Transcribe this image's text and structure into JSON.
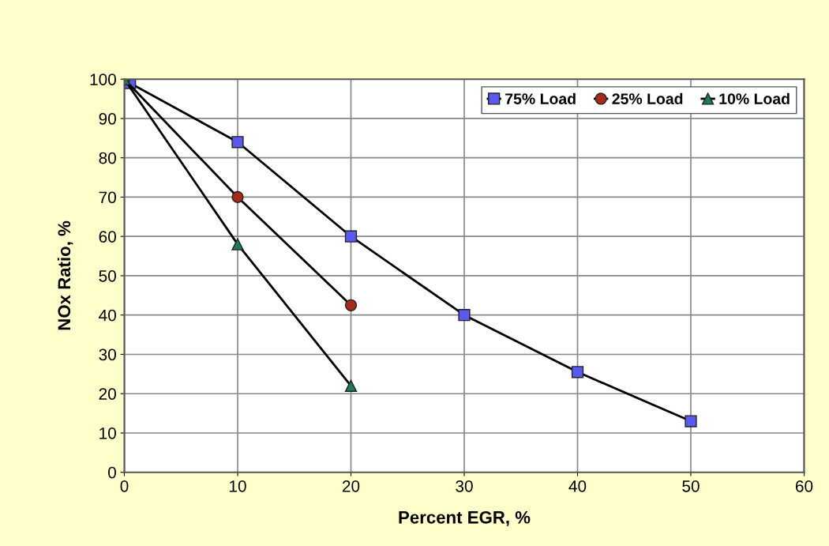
{
  "chart_data": {
    "type": "line",
    "xlabel": "Percent EGR, %",
    "ylabel": "NOx Ratio, %",
    "xlim": [
      0,
      60
    ],
    "xticks": [
      0,
      10,
      20,
      30,
      40,
      50,
      60
    ],
    "ylim": [
      0,
      100
    ],
    "yticks": [
      0,
      10,
      20,
      30,
      40,
      50,
      60,
      70,
      80,
      90,
      100
    ],
    "grid": true,
    "legend": "top right",
    "series": [
      {
        "name": "75% Load",
        "color": "#5a5af0",
        "marker": "square",
        "x": [
          0.5,
          10,
          20,
          30,
          40,
          50
        ],
        "values": [
          99,
          84,
          60,
          40,
          25.5,
          13
        ]
      },
      {
        "name": "25% Load",
        "color": "#a52a1a",
        "marker": "circle",
        "x": [
          0,
          10,
          20
        ],
        "values": [
          100,
          70,
          42.5
        ]
      },
      {
        "name": "10% Load",
        "color": "#1f7a55",
        "marker": "triangle",
        "x": [
          0,
          10,
          20
        ],
        "values": [
          100,
          58,
          22
        ]
      }
    ]
  }
}
